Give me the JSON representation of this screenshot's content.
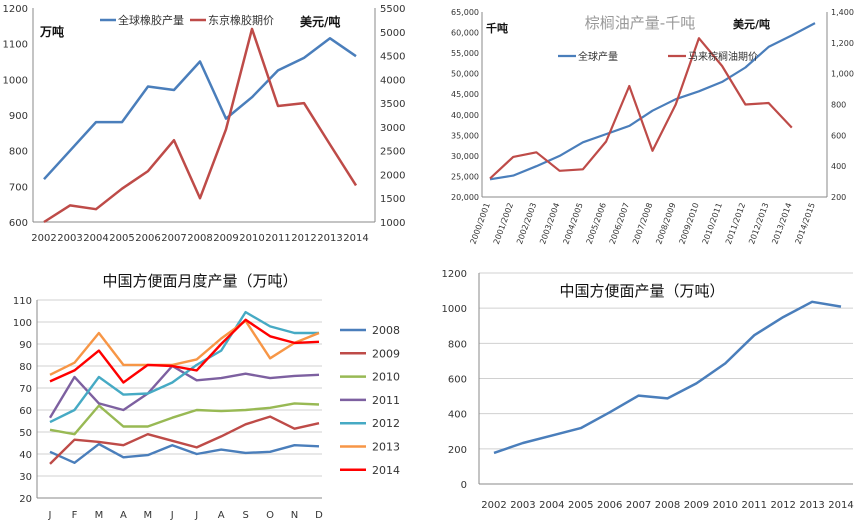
{
  "chart_data": [
    {
      "type": "line",
      "title": "",
      "left_unit": "万吨",
      "right_unit": "美元/吨",
      "x": [
        "2002",
        "2003",
        "2004",
        "2005",
        "2006",
        "2007",
        "2008",
        "2009",
        "2010",
        "2011",
        "2012",
        "2013",
        "2014"
      ],
      "ylim_left": [
        600,
        1200
      ],
      "yticks_left": [
        600,
        700,
        800,
        900,
        1000,
        1100,
        1200
      ],
      "ylim_right": [
        1000,
        5500
      ],
      "yticks_right": [
        1000,
        1500,
        2000,
        2500,
        3000,
        3500,
        4000,
        4500,
        5000,
        5500
      ],
      "legend_position": "top",
      "grid": false,
      "series": [
        {
          "name": "全球橡胶产量",
          "axis": "left",
          "color": "#4a7ebb",
          "values": [
            720,
            800,
            880,
            880,
            980,
            970,
            1050,
            890,
            950,
            1025,
            1060,
            1115,
            1065
          ]
        },
        {
          "name": "东京橡胶期价",
          "axis": "right",
          "color": "#be4b48",
          "values": [
            1000,
            1350,
            1270,
            1700,
            2070,
            2720,
            1500,
            2950,
            5060,
            3440,
            3500,
            2630,
            1770
          ]
        }
      ]
    },
    {
      "type": "line",
      "title": "棕榈油产量-千吨",
      "left_unit": "千吨",
      "right_unit": "美元/吨",
      "x": [
        "2000/2001",
        "2001/2002",
        "2002/2003",
        "2003/2004",
        "2004/2005",
        "2005/2006",
        "2006/2007",
        "2007/2008",
        "2008/2009",
        "2009/2010",
        "2010/2011",
        "2011/2012",
        "2012/2013",
        "2013/2014",
        "2014/2015"
      ],
      "ylim_left": [
        20000,
        65000
      ],
      "yticks_left": [
        20000,
        25000,
        30000,
        35000,
        40000,
        45000,
        50000,
        55000,
        60000,
        65000
      ],
      "ylim_right": [
        200,
        1400
      ],
      "yticks_right": [
        200,
        400,
        600,
        800,
        1000,
        1200,
        1400
      ],
      "legend_position": "top-left",
      "grid": false,
      "series": [
        {
          "name": "全球产量",
          "axis": "left",
          "color": "#4a7ebb",
          "values": [
            24300,
            25200,
            27500,
            30000,
            33300,
            35300,
            37300,
            41000,
            43800,
            45700,
            48000,
            51500,
            56500,
            59300,
            62300
          ]
        },
        {
          "name": "马来棕榈油期价",
          "axis": "right",
          "color": "#be4b48",
          "values": [
            320,
            460,
            490,
            370,
            380,
            560,
            920,
            500,
            800,
            1230,
            1050,
            800,
            810,
            650,
            null
          ]
        }
      ]
    },
    {
      "type": "line",
      "title": "中国方便面月度产量（万吨）",
      "x": [
        "J",
        "F",
        "M",
        "A",
        "M",
        "J",
        "J",
        "A",
        "S",
        "O",
        "N",
        "D"
      ],
      "ylim": [
        20,
        110
      ],
      "yticks": [
        20,
        30,
        40,
        50,
        60,
        70,
        80,
        90,
        100,
        110
      ],
      "legend_position": "right",
      "grid": true,
      "series": [
        {
          "name": "2008",
          "color": "#4a7ebb",
          "values": [
            41,
            36,
            44.5,
            38.5,
            39.5,
            44,
            40,
            42,
            40.5,
            41,
            44,
            43.5
          ]
        },
        {
          "name": "2009",
          "color": "#be4b48",
          "values": [
            35.5,
            46.5,
            45.5,
            44,
            49,
            46,
            43,
            48,
            53.5,
            57,
            51.5,
            54
          ]
        },
        {
          "name": "2010",
          "color": "#98b954",
          "values": [
            51,
            49,
            62,
            52.5,
            52.5,
            56.5,
            60,
            59.5,
            60,
            61,
            63,
            62.5
          ]
        },
        {
          "name": "2011",
          "color": "#7d60a0",
          "values": [
            56.5,
            75,
            63,
            60,
            67.5,
            80,
            73.5,
            74.5,
            76.5,
            74.5,
            75.5,
            76
          ]
        },
        {
          "name": "2012",
          "color": "#46aac4",
          "values": [
            54.5,
            60,
            75,
            67,
            67.5,
            72.5,
            80.5,
            87,
            104.5,
            98,
            95,
            95
          ]
        },
        {
          "name": "2013",
          "color": "#f79646",
          "values": [
            76,
            81.5,
            95,
            80.5,
            80.5,
            80.5,
            83,
            92.5,
            100.5,
            83.5,
            90.5,
            95
          ]
        },
        {
          "name": "2014",
          "color": "#ff0000",
          "values": [
            73,
            78,
            87,
            72.5,
            80.5,
            80,
            78,
            90,
            101,
            93.5,
            90.5,
            91
          ]
        }
      ]
    },
    {
      "type": "line",
      "title": "中国方便面产量（万吨）",
      "x": [
        "2002",
        "2003",
        "2004",
        "2005",
        "2006",
        "2007",
        "2008",
        "2009",
        "2010",
        "2011",
        "2012",
        "2013",
        "2014"
      ],
      "ylim": [
        0,
        1200
      ],
      "yticks": [
        0,
        200,
        400,
        600,
        800,
        1000,
        1200
      ],
      "grid": true,
      "series": [
        {
          "name": "",
          "color": "#4a7ebb",
          "values": [
            177,
            233,
            275,
            318,
            408,
            503,
            487,
            572,
            686,
            846,
            949,
            1036,
            1009
          ]
        }
      ]
    }
  ]
}
